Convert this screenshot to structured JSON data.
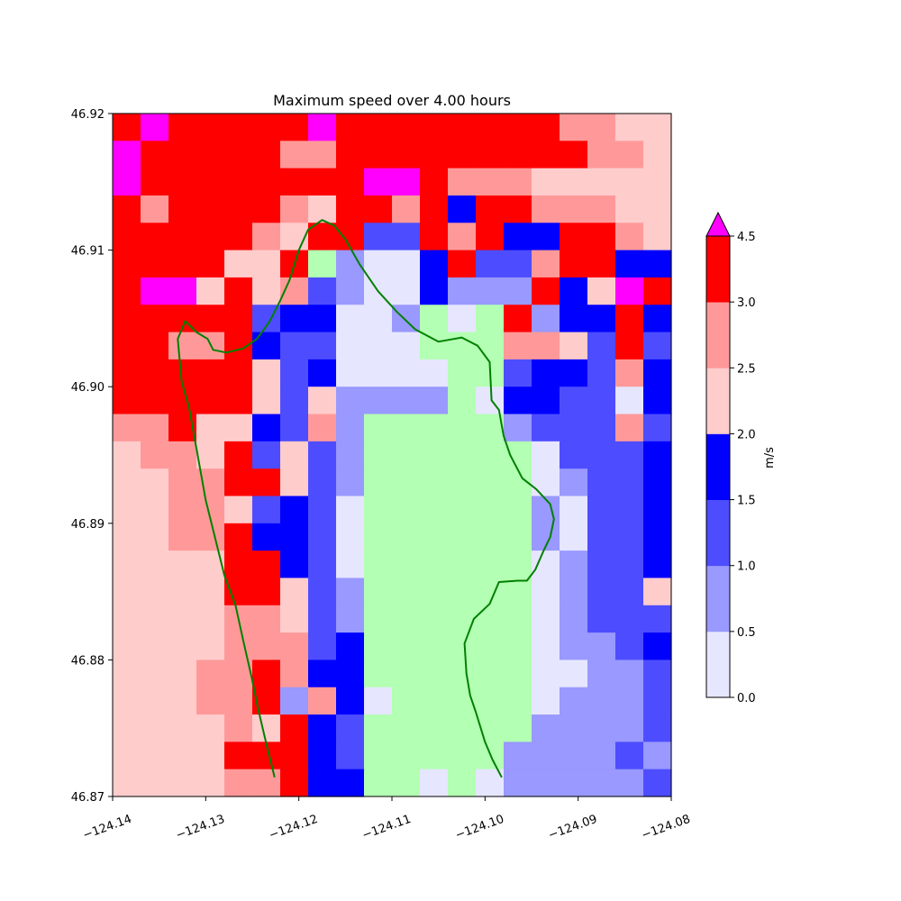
{
  "chart_data": {
    "type": "heatmap",
    "title": "Maximum speed over 4.00 hours",
    "xlim": [
      -124.14,
      -124.08
    ],
    "ylim": [
      46.87,
      46.92
    ],
    "x_ticks": [
      -124.14,
      -124.13,
      -124.12,
      -124.11,
      -124.1,
      -124.09,
      -124.08
    ],
    "x_tick_labels": [
      "−124.14",
      "−124.13",
      "−124.12",
      "−124.11",
      "−124.10",
      "−124.09",
      "−124.08"
    ],
    "y_ticks": [
      46.87,
      46.88,
      46.89,
      46.9,
      46.91,
      46.92
    ],
    "y_tick_labels": [
      "46.87",
      "46.88",
      "46.89",
      "46.90",
      "46.91",
      "46.92"
    ],
    "colorbar": {
      "label": "m/s",
      "extend": "max",
      "ticks": [
        "0.0",
        "0.5",
        "1.0",
        "1.5",
        "2.0",
        "2.5",
        "3.0",
        "4.5"
      ],
      "levels": [
        0.0,
        0.5,
        1.0,
        1.5,
        2.0,
        2.5,
        3.0,
        4.5
      ],
      "colors": [
        "#e6e6ff",
        "#9999ff",
        "#4d4dff",
        "#0000ff",
        "#ffcccc",
        "#ff9999",
        "#ff0000"
      ],
      "over_color": "#ff00ff"
    },
    "level_colors": [
      "#b3ffb3",
      "#e6e6ff",
      "#9999ff",
      "#4d4dff",
      "#0000ff",
      "#ffcccc",
      "#ff9999",
      "#ff0000",
      "#ff00ff"
    ],
    "grid": "level index per cell (row 0 = top, 46.92) — 0: below 0 (green), 1: 0.0–0.5, 2: 0.5–1.0, 3: 1.0–1.5, 4: 1.5–2.0, 5: 2.0–2.5, 6: 2.5–3.0, 7: 3.0–4.5, 8: >4.5",
    "cells": [
      "78777778777777776655",
      "87777766777777777665",
      "87777777788766655555",
      "76777765776747766655",
      "77777657733767447765",
      "77775570211473367744",
      "78857563211422274587",
      "77777344112010724474",
      "77667433111000665373",
      "77777534111100344364",
      "77777535222201443314",
      "66755436200000233363",
      "56657353200000013334",
      "55667753200000012334",
      "55665343100000021334",
      "55667443100000021334",
      "55557743100000012334",
      "55557753200000012335",
      "55556653200000012333",
      "55556663400000012234",
      "55566764400000011223",
      "55566726410000012223",
      "55556574300000022223",
      "55557774300000222232",
      "55556674400101222223"
    ],
    "coastline": [
      [
        -124.1226,
        46.8714
      ],
      [
        -124.1234,
        46.8736
      ],
      [
        -124.1244,
        46.8765
      ],
      [
        -124.125,
        46.8785
      ],
      [
        -124.126,
        46.8815
      ],
      [
        -124.1268,
        46.884
      ],
      [
        -124.128,
        46.8862
      ],
      [
        -124.1292,
        46.8895
      ],
      [
        -124.13,
        46.8917
      ],
      [
        -124.131,
        46.8955
      ],
      [
        -124.1318,
        46.8985
      ],
      [
        -124.1326,
        46.9004
      ],
      [
        -124.133,
        46.9035
      ],
      [
        -124.1322,
        46.9048
      ],
      [
        -124.131,
        46.904
      ],
      [
        -124.1298,
        46.9035
      ],
      [
        -124.1292,
        46.9027
      ],
      [
        -124.1278,
        46.9025
      ],
      [
        -124.126,
        46.9028
      ],
      [
        -124.1245,
        46.9035
      ],
      [
        -124.1232,
        46.9047
      ],
      [
        -124.122,
        46.9063
      ],
      [
        -124.121,
        46.9078
      ],
      [
        -124.12,
        46.91
      ],
      [
        -124.119,
        46.9115
      ],
      [
        -124.1175,
        46.9122
      ],
      [
        -124.1162,
        46.9118
      ],
      [
        -124.115,
        46.9108
      ],
      [
        -124.1135,
        46.909
      ],
      [
        -124.1115,
        46.907
      ],
      [
        -124.1095,
        46.9055
      ],
      [
        -124.1075,
        46.9042
      ],
      [
        -124.105,
        46.9033
      ],
      [
        -124.1025,
        46.9036
      ],
      [
        -124.1008,
        46.903
      ],
      [
        -124.0995,
        46.9018
      ],
      [
        -124.0993,
        46.899
      ],
      [
        -124.0985,
        46.8983
      ],
      [
        -124.098,
        46.8964
      ],
      [
        -124.0973,
        46.895
      ],
      [
        -124.096,
        46.8933
      ],
      [
        -124.0945,
        46.8925
      ],
      [
        -124.093,
        46.8914
      ],
      [
        -124.0926,
        46.8903
      ],
      [
        -124.093,
        46.889
      ],
      [
        -124.0937,
        46.888
      ],
      [
        -124.0946,
        46.8866
      ],
      [
        -124.0955,
        46.8858
      ],
      [
        -124.0965,
        46.8858
      ],
      [
        -124.0985,
        46.8857
      ],
      [
        -124.0995,
        46.8841
      ],
      [
        -124.1012,
        46.883
      ],
      [
        -124.1022,
        46.8812
      ],
      [
        -124.102,
        46.879
      ],
      [
        -124.1016,
        46.8774
      ],
      [
        -124.101,
        46.8762
      ],
      [
        -124.1,
        46.874
      ],
      [
        -124.0992,
        46.8727
      ],
      [
        -124.0982,
        46.8714
      ]
    ],
    "coastline_color": "#008000"
  }
}
